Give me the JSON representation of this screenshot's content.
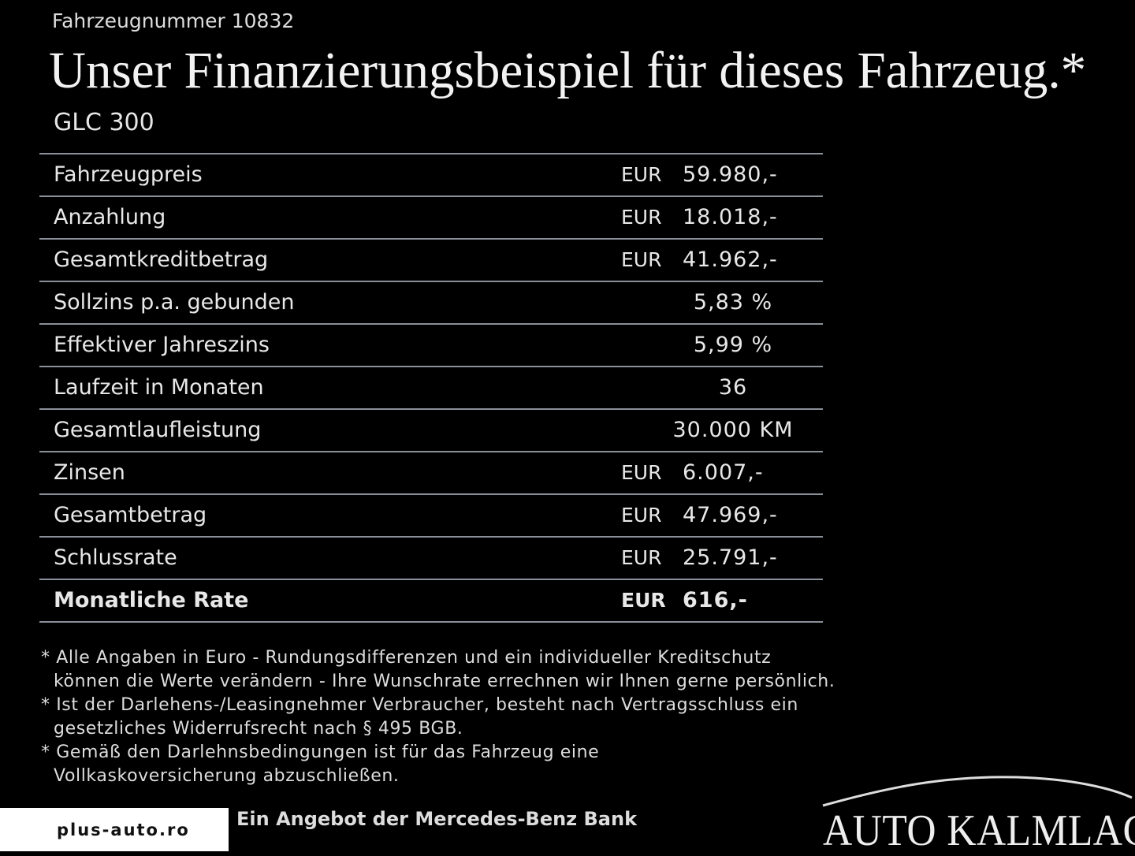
{
  "header": {
    "vehicle_number": "Fahrzeugnummer 10832",
    "title": "Unser Finanzierungsbeispiel für dieses Fahrzeug.*",
    "model": "GLC 300"
  },
  "table": {
    "rows": [
      {
        "label": "Fahrzeugpreis",
        "currency": "EUR",
        "value": "59.980,-"
      },
      {
        "label": "Anzahlung",
        "currency": "EUR",
        "value": "18.018,-"
      },
      {
        "label": "Gesamtkreditbetrag",
        "currency": "EUR",
        "value": "41.962,-"
      },
      {
        "label": "Sollzins p.a. gebunden",
        "value": "5,83 %"
      },
      {
        "label": "Effektiver Jahreszins",
        "value": "5,99 %"
      },
      {
        "label": "Laufzeit in Monaten",
        "value": "36"
      },
      {
        "label": "Gesamtlaufleistung",
        "value": "30.000 KM"
      },
      {
        "label": "Zinsen",
        "currency": "EUR",
        "value": "6.007,-"
      },
      {
        "label": "Gesamtbetrag",
        "currency": "EUR",
        "value": "47.969,-"
      },
      {
        "label": "Schlussrate",
        "currency": "EUR",
        "value": "25.791,-"
      },
      {
        "label": "Monatliche Rate",
        "currency": "EUR",
        "value": "616,-"
      }
    ]
  },
  "footnotes": [
    [
      "* Alle Angaben in Euro - Rundungsdifferenzen und ein individueller Kreditschutz",
      "können die Werte verändern - Ihre Wunschrate errechnen wir Ihnen gerne persönlich."
    ],
    [
      "* Ist der Darlehens-/Leasingnehmer Verbraucher, besteht nach Vertragsschluss ein",
      "gesetzliches Widerrufsrecht nach § 495 BGB."
    ],
    [
      "* Gemäß den Darlehnsbedingungen ist für das Fahrzeug eine",
      "Vollkaskoversicherung abzuschließen."
    ]
  ],
  "footer": {
    "bank": "Ein Angebot der Mercedes-Benz Bank",
    "watermark": "plus-auto.ro",
    "dealer": "AUTO KALMLAGE"
  }
}
